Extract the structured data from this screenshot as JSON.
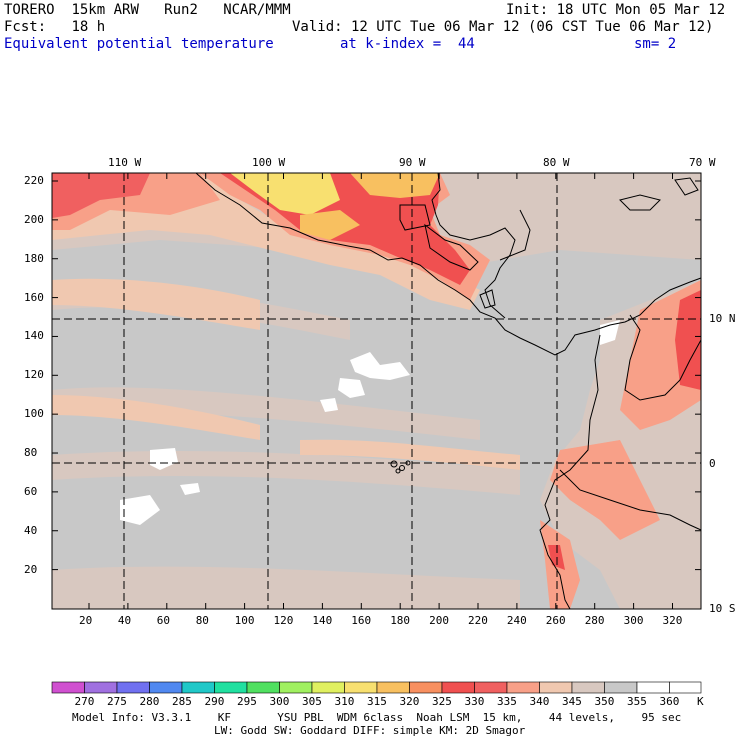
{
  "header": {
    "model": "TORERO",
    "resolution": "15km ARW",
    "run": "Run2",
    "org": "NCAR/MMM",
    "init": "Init: 18 UTC Mon 05 Mar 12",
    "fcst_label": "Fcst:",
    "fcst_hours": "18 h",
    "valid": "Valid: 12 UTC Tue 06 Mar 12 (06 CST Tue 06 Mar 12)",
    "field": "Equivalent potential temperature",
    "level": "at k-index =  44",
    "smooth": "sm= 2"
  },
  "axes": {
    "top_lon": [
      "110 W",
      "100 W",
      "90 W",
      "80 W",
      "70 W"
    ],
    "right_lat": [
      "10 N",
      "0",
      "10 S"
    ],
    "left_y": [
      "220",
      "200",
      "180",
      "160",
      "140",
      "120",
      "100",
      "80",
      "60",
      "40",
      "20"
    ],
    "bottom_x": [
      "20",
      "40",
      "60",
      "80",
      "100",
      "120",
      "140",
      "160",
      "180",
      "200",
      "220",
      "240",
      "260",
      "280",
      "300",
      "320"
    ]
  },
  "legend": {
    "values": [
      "270",
      "275",
      "280",
      "285",
      "290",
      "295",
      "300",
      "305",
      "310",
      "315",
      "320",
      "325",
      "330",
      "335",
      "340",
      "345",
      "350",
      "355",
      "360"
    ],
    "unit": "K",
    "colors": [
      "#d050d0",
      "#a070e0",
      "#7070f0",
      "#5088f0",
      "#20c8c8",
      "#20e0a0",
      "#50e060",
      "#a0f060",
      "#e0f060",
      "#f8e070",
      "#f8c060",
      "#f89060",
      "#f05050",
      "#f06060",
      "#f8a088",
      "#f0c8b0",
      "#d8c8c0",
      "#c8c8c8",
      "#ffffff"
    ]
  },
  "footer": {
    "line1": "Model Info: V3.3.1    KF       YSU PBL  WDM 6class  Noah LSM  15 km,    44 levels,    95 sec",
    "line2": "LW: Godd SW: Goddard DIFF: simple KM: 2D Smagor"
  }
}
